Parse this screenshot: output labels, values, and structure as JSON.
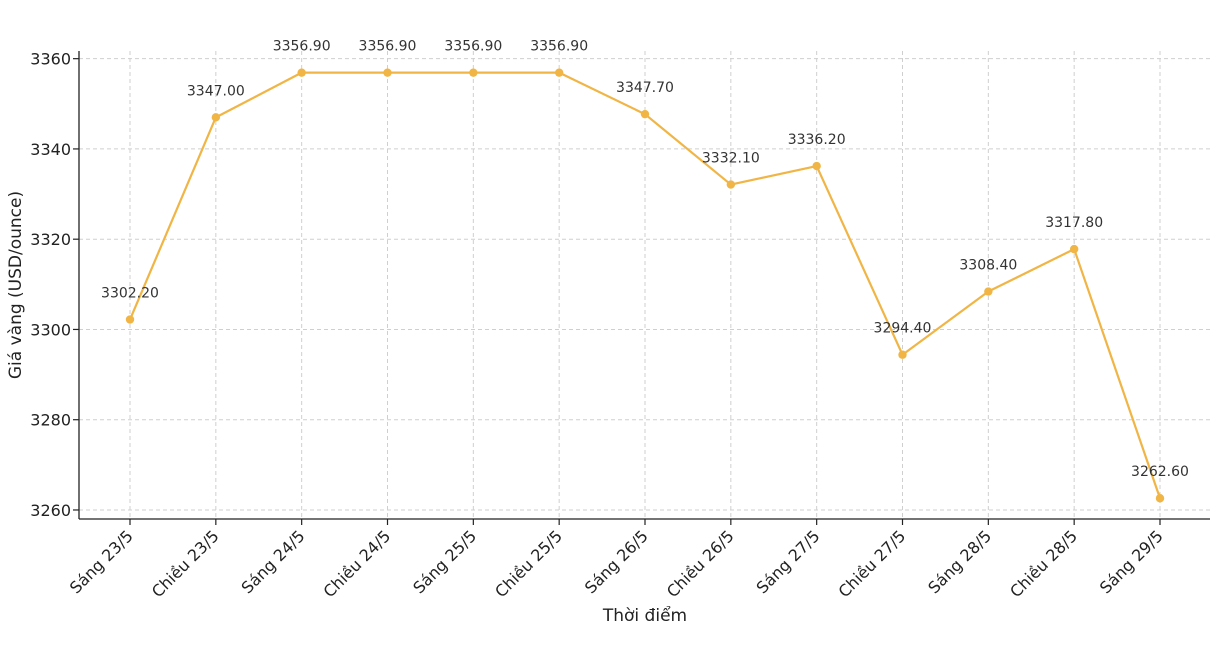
{
  "chart_data": {
    "type": "line",
    "title": "",
    "xlabel": "Thời điểm",
    "ylabel": "Giá vàng (USD/ounce)",
    "categories": [
      "Sáng 23/5",
      "Chiều 23/5",
      "Sáng 24/5",
      "Chiều 24/5",
      "Sáng 25/5",
      "Chiều 25/5",
      "Sáng 26/5",
      "Chiều 26/5",
      "Sáng 27/5",
      "Chiều 27/5",
      "Sáng 28/5",
      "Chiều 28/5",
      "Sáng 29/5"
    ],
    "series": [
      {
        "values": [
          3302.2,
          3347.0,
          3356.9,
          3356.9,
          3356.9,
          3356.9,
          3347.7,
          3332.1,
          3336.2,
          3294.4,
          3308.4,
          3317.8,
          3262.6
        ],
        "labels": [
          "3302.20",
          "3347.00",
          "3356.90",
          "3356.90",
          "3356.90",
          "3356.90",
          "3347.70",
          "3332.10",
          "3336.20",
          "3294.40",
          "3308.40",
          "3317.80",
          "3262.60"
        ],
        "color": "#f0b545"
      }
    ],
    "ylim": [
      3258,
      3361.7
    ],
    "yticks": [
      3260,
      3280,
      3300,
      3320,
      3340,
      3360
    ],
    "grid": true
  }
}
